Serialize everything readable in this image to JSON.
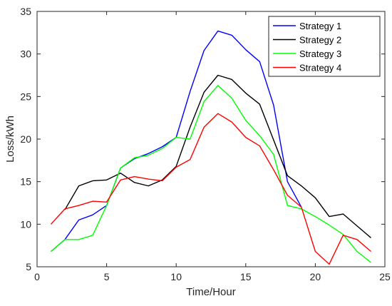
{
  "chart_data": {
    "type": "line",
    "xlabel": "Time/Hour",
    "ylabel": "Loss/kWh",
    "xlim": [
      0,
      25
    ],
    "ylim": [
      5,
      35
    ],
    "xticks": [
      0,
      5,
      10,
      15,
      20,
      25
    ],
    "yticks": [
      5,
      10,
      15,
      20,
      25,
      30,
      35
    ],
    "x": [
      1,
      2,
      3,
      4,
      5,
      6,
      7,
      8,
      9,
      10,
      11,
      12,
      13,
      14,
      15,
      16,
      17,
      18,
      19,
      20,
      21,
      22,
      23,
      24
    ],
    "grid": false,
    "legend_position": "top-right",
    "series": [
      {
        "name": "Strategy 1",
        "color": "#0000ff",
        "values": [
          6.8,
          8.2,
          10.5,
          11.1,
          12.2,
          16.6,
          17.7,
          18.3,
          19.1,
          20.2,
          25.6,
          30.4,
          32.7,
          32.2,
          30.5,
          29.1,
          24.0,
          15.0,
          12.0,
          null,
          null,
          null,
          null,
          null
        ]
      },
      {
        "name": "Strategy 2",
        "color": "#000000",
        "values": [
          null,
          11.7,
          14.5,
          15.1,
          15.2,
          16.0,
          14.9,
          14.5,
          15.2,
          16.8,
          21.4,
          25.5,
          27.5,
          27.0,
          25.4,
          24.1,
          19.9,
          15.7,
          14.5,
          13.1,
          10.9,
          11.2,
          9.8,
          8.4
        ]
      },
      {
        "name": "Strategy 3",
        "color": "#00ff00",
        "values": [
          6.8,
          8.2,
          8.2,
          8.7,
          12.2,
          16.6,
          17.8,
          18.1,
          18.9,
          20.2,
          20.0,
          24.4,
          26.3,
          24.8,
          22.2,
          20.4,
          18.2,
          12.2,
          11.8,
          10.9,
          9.9,
          8.8,
          6.8,
          5.5
        ]
      },
      {
        "name": "Strategy 4",
        "color": "#ff0000",
        "values": [
          10.0,
          11.8,
          12.2,
          12.7,
          12.6,
          15.2,
          15.6,
          15.3,
          15.1,
          16.7,
          17.6,
          21.4,
          23.0,
          22.0,
          20.2,
          19.2,
          16.4,
          13.4,
          12.0,
          6.8,
          5.3,
          8.7,
          8.2,
          6.8
        ]
      }
    ]
  }
}
